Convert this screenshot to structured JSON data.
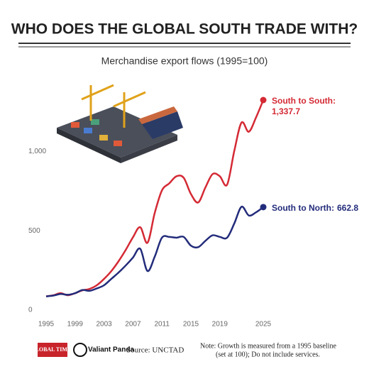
{
  "chart_data": {
    "type": "line",
    "title": "WHO DOES THE GLOBAL SOUTH TRADE WITH?",
    "subtitle": "Merchandise export flows (1995=100)",
    "x": [
      1995,
      1996,
      1997,
      1998,
      1999,
      2000,
      2001,
      2002,
      2003,
      2004,
      2005,
      2006,
      2007,
      2008,
      2009,
      2010,
      2011,
      2012,
      2013,
      2014,
      2015,
      2016,
      2017,
      2018,
      2019,
      2020,
      2021,
      2022,
      2023,
      2024,
      2025
    ],
    "series": [
      {
        "name": "South to South:",
        "color": "#d42a35",
        "values": [
          100,
          107,
          120,
          107,
          120,
          138,
          147,
          170,
          210,
          259,
          321,
          393,
          473,
          536,
          438,
          625,
          768,
          812,
          857,
          848,
          746,
          692,
          786,
          871,
          857,
          804,
          1018,
          1196,
          1138,
          1228,
          1337.7
        ],
        "value_labels": [
          null,
          null,
          null,
          null,
          null,
          null,
          null,
          null,
          null,
          null,
          null,
          null,
          null,
          null,
          null,
          null,
          null,
          null,
          null,
          null,
          null,
          null,
          null,
          null,
          null,
          null,
          null,
          null,
          null,
          null,
          "1,337.7"
        ]
      },
      {
        "name": "South to North:",
        "color": "#232c7a",
        "values": [
          100,
          105,
          115,
          110,
          120,
          140,
          135,
          150,
          170,
          210,
          250,
          295,
          345,
          400,
          260,
          350,
          470,
          475,
          470,
          475,
          420,
          410,
          450,
          485,
          475,
          470,
          560,
          665,
          610,
          630,
          662.8
        ]
      }
    ],
    "xlim": [
      1995,
      2025
    ],
    "xticks": [
      1995,
      1999,
      2003,
      2007,
      2011,
      2015,
      2019,
      2025
    ],
    "ylim": [
      0,
      1337.7
    ],
    "yticks": [
      0,
      500,
      {
        "value": 1000,
        "label": "1,000"
      }
    ],
    "logos": [
      "GLOBAL TIMES",
      "Valiant Panda"
    ],
    "source": "Source: UNCTAD",
    "note": [
      "Note: Growth is measured from a 1995 baseline",
      "(set at 100); Do not include services."
    ]
  }
}
